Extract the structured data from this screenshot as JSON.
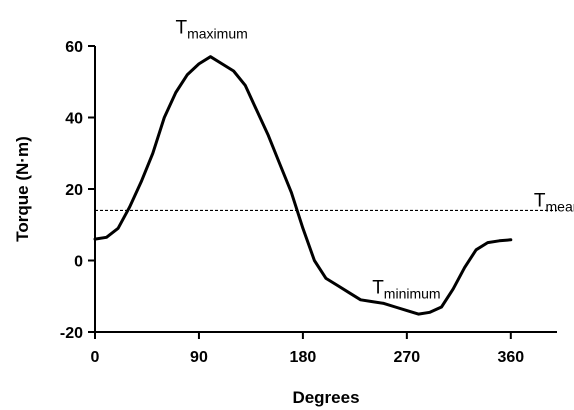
{
  "chart_data": {
    "type": "line",
    "title": "",
    "xlabel": "Degrees",
    "ylabel": "Torque (N·m)",
    "xlim": [
      0,
      400
    ],
    "ylim": [
      -20,
      60
    ],
    "xticks": [
      0,
      90,
      180,
      270,
      360
    ],
    "yticks": [
      -20,
      0,
      20,
      40,
      60
    ],
    "xtick_labels": [
      "0",
      "90",
      "180",
      "270",
      "360"
    ],
    "ytick_labels": [
      "-20",
      "0",
      "20",
      "40",
      "60"
    ],
    "grid": false,
    "series": [
      {
        "x": [
          0,
          10,
          20,
          30,
          40,
          50,
          60,
          70,
          80,
          90,
          100,
          110,
          120,
          130,
          140,
          150,
          160,
          170,
          180,
          190,
          200,
          210,
          220,
          230,
          240,
          250,
          260,
          270,
          280,
          290,
          300,
          310,
          320,
          330,
          340,
          350,
          360
        ],
        "y": [
          6,
          6.5,
          9,
          15,
          22,
          30,
          40,
          47,
          52,
          55,
          57,
          55,
          53,
          49,
          42,
          35,
          27,
          19,
          9,
          0,
          -5,
          -7,
          -9,
          -11,
          -11.5,
          -12,
          -13,
          -14,
          -15,
          -14.5,
          -13,
          -8,
          -2,
          3,
          5,
          5.5,
          5.8
        ],
        "color": "#000000"
      }
    ],
    "reference_lines": [
      {
        "y": 14,
        "style": "dashed",
        "color": "#000000"
      }
    ],
    "annotations": [
      {
        "text": "T",
        "sub": "maximum",
        "x": 100,
        "y": 57
      },
      {
        "text": "T",
        "sub": "mean",
        "x": 380,
        "y": 14
      },
      {
        "text": "T",
        "sub": "minimum",
        "x": 240,
        "y": -7
      }
    ]
  }
}
